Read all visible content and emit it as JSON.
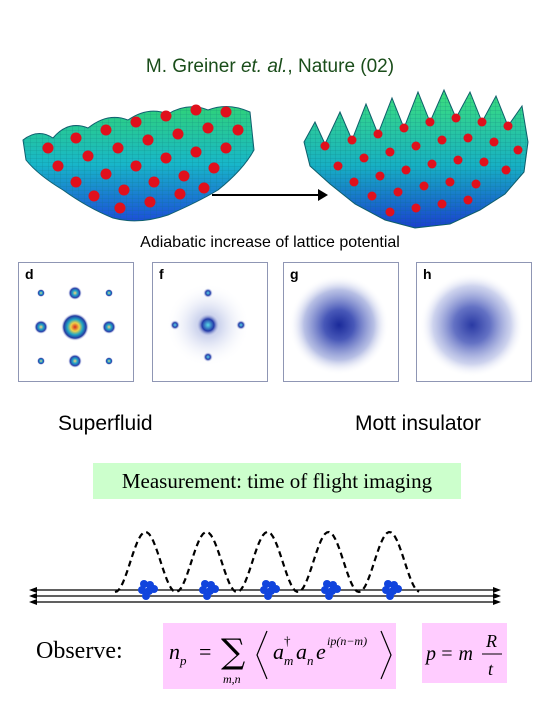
{
  "citation": {
    "authors": "M. Greiner ",
    "etal": "et. al.",
    "rest": ", Nature (02)"
  },
  "caption": "Adiabatic increase of lattice potential",
  "panels": [
    {
      "label": "d"
    },
    {
      "label": "f"
    },
    {
      "label": "g"
    },
    {
      "label": "h"
    }
  ],
  "phases": {
    "left": "Superfluid",
    "right": "Mott insulator"
  },
  "measurement": "Measurement: time of flight imaging",
  "observe": "Observe:",
  "formula_np": {
    "lhs": "n",
    "lhs_sub": "p",
    "eq": "=",
    "sum_sub": "m,n",
    "a1": "a",
    "a1_sup": "†",
    "a1_sub": "m",
    "a2": "a",
    "a2_sub": "n",
    "e": "e",
    "exp": "ip(n−m)"
  },
  "formula_p": {
    "lhs": "p",
    "eq": "= m",
    "num": "R",
    "den": "t"
  },
  "colors": {
    "citation_text": "#1a4d1a",
    "measurement_bg": "#ccffcc",
    "formula_bg": "#ffccff",
    "atom_blue": "#1144dd",
    "site_red": "#e0101c"
  }
}
